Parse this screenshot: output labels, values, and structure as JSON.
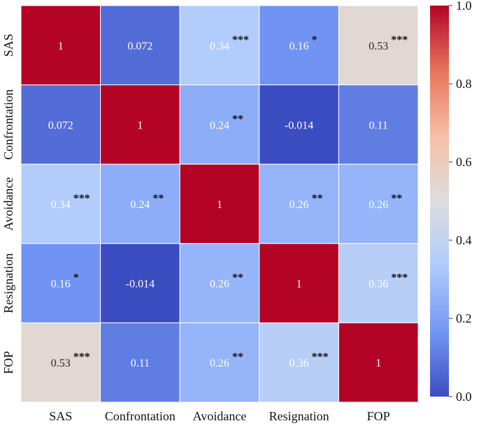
{
  "chart_data": {
    "type": "heatmap",
    "title": "",
    "xlabel": "",
    "ylabel": "",
    "row_labels": [
      "SAS",
      "Confrontation",
      "Avoidance",
      "Resignation",
      "FOP"
    ],
    "col_labels": [
      "SAS",
      "Confrontation",
      "Avoidance",
      "Resignation",
      "FOP"
    ],
    "values": [
      [
        1,
        0.072,
        0.34,
        0.16,
        0.53
      ],
      [
        0.072,
        1,
        0.24,
        -0.014,
        0.11
      ],
      [
        0.34,
        0.24,
        1,
        0.26,
        0.26
      ],
      [
        0.16,
        -0.014,
        0.26,
        1,
        0.36
      ],
      [
        0.53,
        0.11,
        0.26,
        0.36,
        1
      ]
    ],
    "cell_labels": [
      [
        "1",
        "0.072",
        "0.34",
        "0.16",
        "0.53"
      ],
      [
        "0.072",
        "1",
        "0.24",
        "-0.014",
        "0.11"
      ],
      [
        "0.34",
        "0.24",
        "1",
        "0.26",
        "0.26"
      ],
      [
        "0.16",
        "-0.014",
        "0.26",
        "1",
        "0.36"
      ],
      [
        "0.53",
        "0.11",
        "0.26",
        "0.36",
        "1"
      ]
    ],
    "significance": [
      [
        "",
        "",
        "***",
        "*",
        "***"
      ],
      [
        "",
        "",
        "**",
        "",
        ""
      ],
      [
        "***",
        "**",
        "",
        "**",
        "**"
      ],
      [
        "*",
        "",
        "**",
        "",
        "***"
      ],
      [
        "***",
        "",
        "**",
        "***",
        ""
      ]
    ],
    "colormap": "coolwarm",
    "colormap_stops": [
      "#3b4cc0",
      "#7396f5",
      "#b0cbfc",
      "#dddddd",
      "#f6bfa6",
      "#e7745b",
      "#b40426"
    ],
    "vmin": 0.0,
    "vmax": 1.0,
    "colorbar_ticks": [
      0.0,
      0.2,
      0.4,
      0.6,
      0.8,
      1.0
    ],
    "colorbar_tick_labels": [
      "0.0",
      "0.2",
      "0.4",
      "0.6",
      "0.8",
      "1.0"
    ],
    "colorbar_placement": "right",
    "grid": true
  }
}
